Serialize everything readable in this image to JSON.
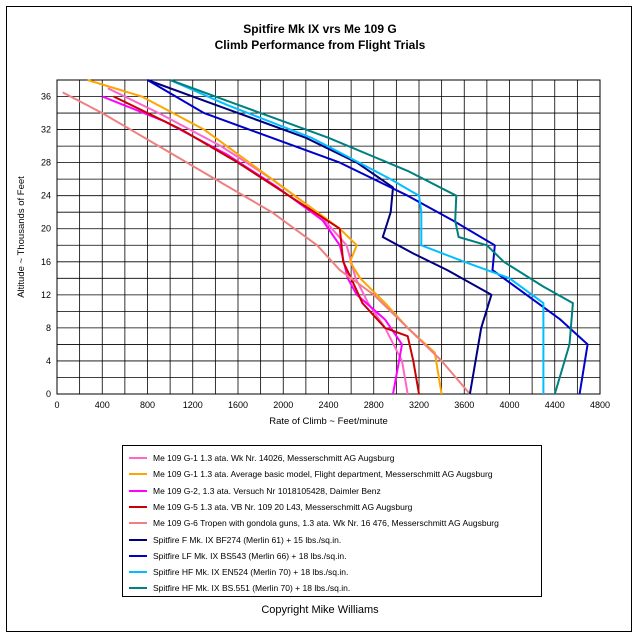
{
  "chart_data": {
    "type": "line",
    "title": "Spitfire Mk IX vrs Me 109 G",
    "subtitle": "Climb Performance from Flight Trials",
    "xlabel": "Rate of Climb ~ Feet/minute",
    "ylabel": "Altitude ~ Thousands of Feet",
    "xlim": [
      0,
      4800
    ],
    "ylim": [
      0,
      38
    ],
    "x_ticks": [
      0,
      400,
      800,
      1200,
      1600,
      2000,
      2400,
      2800,
      3200,
      3600,
      4000,
      4400,
      4800
    ],
    "y_ticks": [
      0,
      4,
      8,
      12,
      16,
      20,
      24,
      28,
      32,
      36
    ],
    "grid": true,
    "legend_placement": "bottom",
    "series": [
      {
        "name": "Me 109 G-1 1.3 ata.  Wk Nr. 14026,  Messerschmitt AG Augsburg",
        "color": "#ff66cc",
        "points": [
          [
            3100,
            0
          ],
          [
            3050,
            4
          ],
          [
            2900,
            8
          ],
          [
            2750,
            11
          ],
          [
            2640,
            14
          ],
          [
            2560,
            18
          ],
          [
            2300,
            22
          ],
          [
            1900,
            26
          ],
          [
            1450,
            30
          ],
          [
            900,
            34
          ],
          [
            450,
            37
          ]
        ]
      },
      {
        "name": "Me 109 G-1 1.3 ata.  Average basic model, Flight department, Messerschmitt AG Augsburg",
        "color": "#ffa500",
        "points": [
          [
            3400,
            0
          ],
          [
            3340,
            5
          ],
          [
            3100,
            8
          ],
          [
            2900,
            11
          ],
          [
            2680,
            14
          ],
          [
            2590,
            16
          ],
          [
            2650,
            18
          ],
          [
            2500,
            20
          ],
          [
            2100,
            24
          ],
          [
            1700,
            28
          ],
          [
            1300,
            32
          ],
          [
            750,
            36
          ],
          [
            270,
            38
          ]
        ]
      },
      {
        "name": "Me 109 G-2, 1.3 ata.  Versuch Nr 1018105428,  Daimler Benz",
        "color": "#ff00ff",
        "points": [
          [
            2970,
            0
          ],
          [
            3050,
            6
          ],
          [
            2900,
            9
          ],
          [
            2650,
            12
          ],
          [
            2570,
            14
          ],
          [
            2500,
            18
          ],
          [
            2350,
            21
          ],
          [
            1950,
            25
          ],
          [
            1500,
            29
          ],
          [
            950,
            33
          ],
          [
            400,
            36
          ]
        ]
      },
      {
        "name": "Me 109 G-5  1.3 ata.  VB Nr. 109 20 L43,  Messerschmitt AG Augsburg",
        "color": "#cc0000",
        "points": [
          [
            3200,
            0
          ],
          [
            3150,
            4
          ],
          [
            3100,
            7
          ],
          [
            2900,
            8
          ],
          [
            2700,
            11
          ],
          [
            2600,
            14
          ],
          [
            2530,
            16
          ],
          [
            2500,
            20
          ],
          [
            2050,
            24
          ],
          [
            1600,
            28
          ],
          [
            1100,
            32
          ],
          [
            500,
            36
          ]
        ]
      },
      {
        "name": "Me 109 G-6 Tropen with gondola guns, 1.3 ata. Wk Nr. 16 476, Messerschmitt AG Augsburg",
        "color": "#f08080",
        "points": [
          [
            3650,
            0
          ],
          [
            3400,
            4
          ],
          [
            3100,
            8
          ],
          [
            2800,
            12
          ],
          [
            2500,
            15
          ],
          [
            2300,
            18
          ],
          [
            1900,
            22
          ],
          [
            1400,
            26
          ],
          [
            900,
            30
          ],
          [
            400,
            34
          ],
          [
            50,
            36.5
          ]
        ]
      },
      {
        "name": "Spitfire F Mk. IX BF274 (Merlin 61) + 15 lbs./sq.in.",
        "color": "#000080",
        "points": [
          [
            3650,
            0
          ],
          [
            3750,
            8
          ],
          [
            3840,
            12
          ],
          [
            3450,
            15
          ],
          [
            3150,
            17
          ],
          [
            2880,
            19
          ],
          [
            2950,
            22
          ],
          [
            2970,
            25
          ],
          [
            2650,
            28
          ],
          [
            2200,
            31
          ],
          [
            1400,
            35
          ],
          [
            800,
            38
          ]
        ]
      },
      {
        "name": "Spitfire LF Mk. IX BS543 (Merlin 66)  + 18 lbs./sq.in.",
        "color": "#0000cc",
        "points": [
          [
            4620,
            0
          ],
          [
            4690,
            6
          ],
          [
            4450,
            9
          ],
          [
            4150,
            12
          ],
          [
            3850,
            15
          ],
          [
            3870,
            18
          ],
          [
            3500,
            21
          ],
          [
            3100,
            24
          ],
          [
            2500,
            28
          ],
          [
            1900,
            31
          ],
          [
            1300,
            34
          ],
          [
            800,
            38
          ]
        ]
      },
      {
        "name": "Spitfire HF Mk. IX  EN524 (Merlin 70)  + 18 lbs./sq.in.",
        "color": "#00bfff",
        "points": [
          [
            4300,
            0
          ],
          [
            4300,
            6
          ],
          [
            4300,
            11
          ],
          [
            4000,
            14
          ],
          [
            3600,
            16
          ],
          [
            3220,
            18
          ],
          [
            3220,
            22
          ],
          [
            3200,
            24
          ],
          [
            2950,
            26
          ],
          [
            2250,
            31
          ],
          [
            1500,
            35
          ],
          [
            1000,
            38
          ]
        ]
      },
      {
        "name": "Spitfire HF Mk. IX  BS.551 (Merlin 70) + 18 lbs./sq.in.",
        "color": "#008080",
        "points": [
          [
            4400,
            0
          ],
          [
            4530,
            6
          ],
          [
            4560,
            11
          ],
          [
            4300,
            13
          ],
          [
            3950,
            16
          ],
          [
            3800,
            18
          ],
          [
            3550,
            19
          ],
          [
            3520,
            21
          ],
          [
            3530,
            24
          ],
          [
            3100,
            27
          ],
          [
            2400,
            31
          ],
          [
            1600,
            35
          ],
          [
            1000,
            38
          ]
        ]
      }
    ]
  },
  "copyright": "Copyright Mike Williams"
}
